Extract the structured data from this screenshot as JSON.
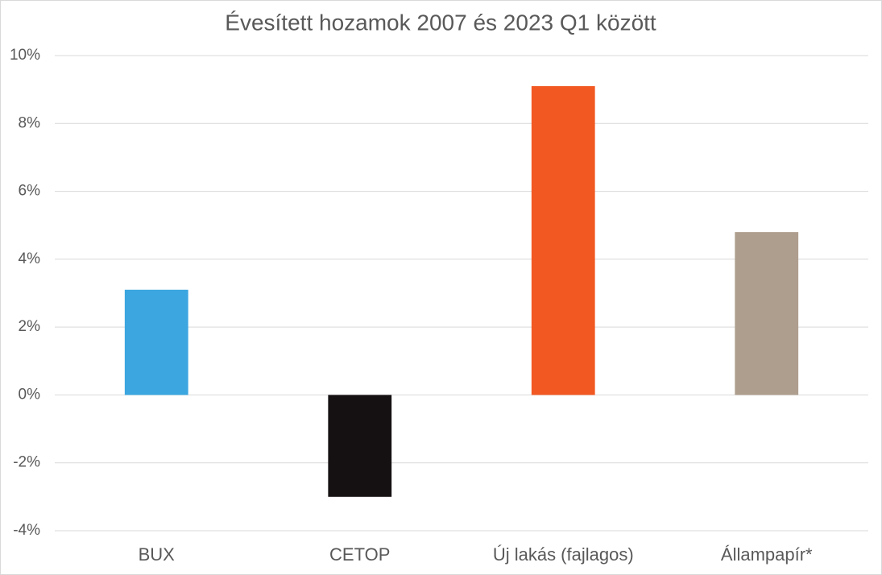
{
  "chart_data": {
    "type": "bar",
    "title": "Évesített hozamok 2007 és 2023 Q1 között",
    "categories": [
      "BUX",
      "CETOP",
      "Új lakás (fajlagos)",
      "Állampapír*"
    ],
    "values": [
      3.1,
      -3.0,
      9.1,
      4.8
    ],
    "colors": [
      "#3ba6e0",
      "#151112",
      "#f25822",
      "#ae9e8e"
    ],
    "ylim": [
      -4,
      10
    ],
    "yticks": [
      {
        "value": -4,
        "label": "-4%"
      },
      {
        "value": -2,
        "label": "-2%"
      },
      {
        "value": 0,
        "label": "0%"
      },
      {
        "value": 2,
        "label": "2%"
      },
      {
        "value": 4,
        "label": "4%"
      },
      {
        "value": 6,
        "label": "6%"
      },
      {
        "value": 8,
        "label": "8%"
      },
      {
        "value": 10,
        "label": "10%"
      }
    ],
    "grid": true
  }
}
